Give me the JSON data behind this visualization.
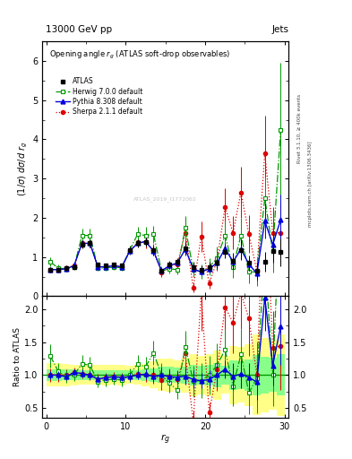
{
  "title_top": "13000 GeV pp",
  "title_right": "Jets",
  "plot_title": "Opening angle $r_g$ (ATLAS soft-drop observables)",
  "ylabel_main": "(1/σ) dσ/d r_g",
  "ylabel_ratio": "Ratio to ATLAS",
  "xlabel": "$r_g$",
  "watermark": "ATLAS_2019_I1772062",
  "right_label1": "Rivet 3.1.10, ≥ 400k events",
  "right_label2": "mcplots.cern.ch [arXiv:1306.3436]",
  "atlas_x": [
    0.5,
    1.5,
    2.5,
    3.5,
    4.5,
    5.5,
    6.5,
    7.5,
    8.5,
    9.5,
    10.5,
    11.5,
    12.5,
    13.5,
    14.5,
    15.5,
    16.5,
    17.5,
    18.5,
    19.5,
    20.5,
    21.5,
    22.5,
    23.5,
    24.5,
    25.5,
    26.5,
    27.5,
    28.5,
    29.5
  ],
  "atlas_y": [
    0.68,
    0.68,
    0.72,
    0.75,
    1.32,
    1.35,
    0.8,
    0.78,
    0.8,
    0.78,
    1.18,
    1.35,
    1.38,
    1.18,
    0.65,
    0.8,
    0.88,
    1.22,
    0.75,
    0.68,
    0.75,
    0.85,
    1.12,
    0.9,
    1.18,
    0.85,
    0.65,
    0.88,
    1.15,
    1.12
  ],
  "atlas_yerr": [
    0.06,
    0.06,
    0.06,
    0.06,
    0.1,
    0.1,
    0.06,
    0.06,
    0.06,
    0.06,
    0.08,
    0.1,
    0.12,
    0.12,
    0.08,
    0.1,
    0.1,
    0.16,
    0.12,
    0.1,
    0.12,
    0.16,
    0.16,
    0.2,
    0.25,
    0.2,
    0.2,
    0.25,
    0.3,
    0.35
  ],
  "herwig_x": [
    0.5,
    1.5,
    2.5,
    3.5,
    4.5,
    5.5,
    6.5,
    7.5,
    8.5,
    9.5,
    10.5,
    11.5,
    12.5,
    13.5,
    14.5,
    15.5,
    16.5,
    17.5,
    18.5,
    19.5,
    20.5,
    21.5,
    22.5,
    23.5,
    24.5,
    25.5,
    26.5,
    27.5,
    28.5,
    29.5
  ],
  "herwig_y": [
    0.88,
    0.72,
    0.7,
    0.75,
    1.55,
    1.55,
    0.72,
    0.72,
    0.75,
    0.72,
    1.18,
    1.58,
    1.55,
    1.58,
    0.65,
    0.7,
    0.68,
    1.75,
    0.68,
    0.62,
    0.75,
    0.98,
    1.55,
    0.75,
    1.55,
    0.62,
    0.62,
    2.5,
    1.15,
    4.25
  ],
  "herwig_yerr": [
    0.12,
    0.08,
    0.07,
    0.07,
    0.18,
    0.18,
    0.07,
    0.07,
    0.07,
    0.07,
    0.12,
    0.18,
    0.22,
    0.22,
    0.12,
    0.12,
    0.12,
    0.3,
    0.18,
    0.18,
    0.22,
    0.28,
    0.35,
    0.28,
    0.45,
    0.28,
    0.35,
    0.55,
    0.55,
    1.7
  ],
  "pythia_x": [
    0.5,
    1.5,
    2.5,
    3.5,
    4.5,
    5.5,
    6.5,
    7.5,
    8.5,
    9.5,
    10.5,
    11.5,
    12.5,
    13.5,
    14.5,
    15.5,
    16.5,
    17.5,
    18.5,
    19.5,
    20.5,
    21.5,
    22.5,
    23.5,
    24.5,
    25.5,
    26.5,
    27.5,
    28.5,
    29.5
  ],
  "pythia_y": [
    0.68,
    0.68,
    0.7,
    0.78,
    1.35,
    1.35,
    0.75,
    0.75,
    0.78,
    0.75,
    1.15,
    1.35,
    1.4,
    1.15,
    0.65,
    0.78,
    0.85,
    1.2,
    0.7,
    0.62,
    0.7,
    0.85,
    1.22,
    0.88,
    1.2,
    0.82,
    0.58,
    1.92,
    1.32,
    1.95
  ],
  "pythia_yerr": [
    0.04,
    0.04,
    0.04,
    0.04,
    0.08,
    0.08,
    0.04,
    0.04,
    0.04,
    0.04,
    0.07,
    0.08,
    0.1,
    0.1,
    0.07,
    0.08,
    0.08,
    0.15,
    0.1,
    0.08,
    0.1,
    0.15,
    0.15,
    0.18,
    0.25,
    0.18,
    0.18,
    0.45,
    0.35,
    0.65
  ],
  "sherpa_x": [
    0.5,
    1.5,
    2.5,
    3.5,
    4.5,
    5.5,
    6.5,
    7.5,
    8.5,
    9.5,
    10.5,
    11.5,
    12.5,
    13.5,
    14.5,
    15.5,
    16.5,
    17.5,
    18.5,
    19.5,
    20.5,
    21.5,
    22.5,
    23.5,
    24.5,
    25.5,
    26.5,
    27.5,
    28.5,
    29.5
  ],
  "sherpa_y": [
    0.68,
    0.68,
    0.72,
    0.78,
    1.35,
    1.35,
    0.75,
    0.75,
    0.78,
    0.75,
    1.15,
    1.38,
    1.38,
    1.18,
    0.6,
    0.78,
    0.82,
    1.62,
    0.22,
    1.52,
    0.32,
    0.92,
    2.28,
    1.62,
    2.65,
    1.58,
    0.65,
    3.65,
    1.62,
    1.62
  ],
  "sherpa_yerr": [
    0.07,
    0.07,
    0.06,
    0.06,
    0.1,
    0.1,
    0.06,
    0.06,
    0.06,
    0.06,
    0.09,
    0.1,
    0.15,
    0.15,
    0.1,
    0.1,
    0.12,
    0.38,
    0.12,
    0.38,
    0.12,
    0.28,
    0.48,
    0.42,
    0.65,
    0.48,
    0.32,
    0.95,
    0.65,
    0.75
  ],
  "ylim_main": [
    0,
    6.5
  ],
  "ylim_ratio": [
    0.35,
    2.2
  ],
  "xlim": [
    -0.5,
    30.5
  ],
  "atlas_color": "#000000",
  "herwig_color": "#009900",
  "pythia_color": "#0000dd",
  "sherpa_color": "#dd0000",
  "band_color_yellow": "#ffff88",
  "band_color_green": "#88ff88",
  "ratio_line_color": "#009900"
}
